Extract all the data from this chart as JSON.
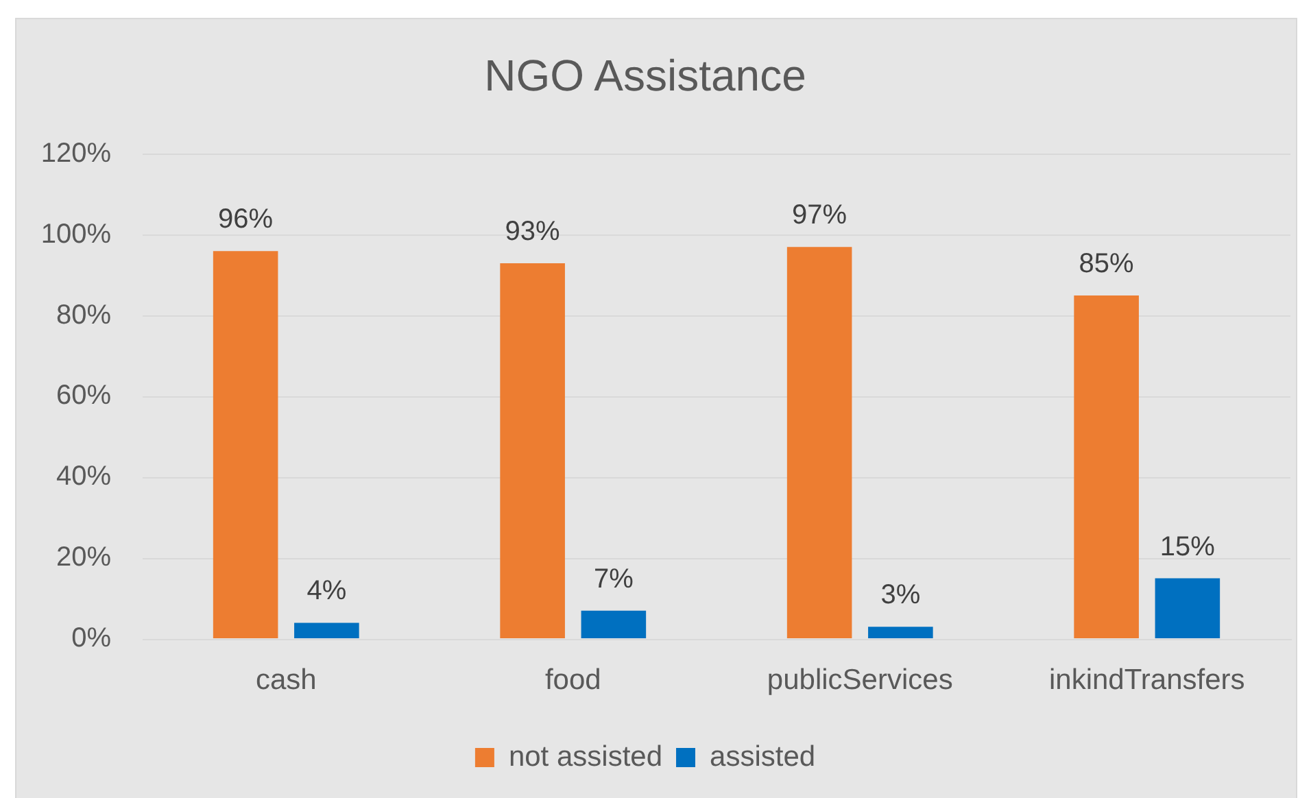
{
  "chart_data": {
    "type": "bar",
    "title": "NGO Assistance",
    "categories": [
      "cash",
      "food",
      "publicServices",
      "inkindTransfers"
    ],
    "series": [
      {
        "name": "not assisted",
        "color": "#ed7d31",
        "values": [
          96,
          93,
          97,
          85
        ],
        "value_labels": [
          "96%",
          "93%",
          "97%",
          "85%"
        ]
      },
      {
        "name": "assisted",
        "color": "#0070c0",
        "values": [
          4,
          7,
          3,
          15
        ],
        "value_labels": [
          "4%",
          "7%",
          "3%",
          "15%"
        ]
      }
    ],
    "ylim": [
      0,
      120
    ],
    "yticks": [
      {
        "value": 0,
        "label": "0%"
      },
      {
        "value": 20,
        "label": "20%"
      },
      {
        "value": 40,
        "label": "40%"
      },
      {
        "value": 60,
        "label": "60%"
      },
      {
        "value": 80,
        "label": "80%"
      },
      {
        "value": 100,
        "label": "100%"
      },
      {
        "value": 120,
        "label": "120%"
      }
    ],
    "grid": "y",
    "legend": "bottom"
  }
}
